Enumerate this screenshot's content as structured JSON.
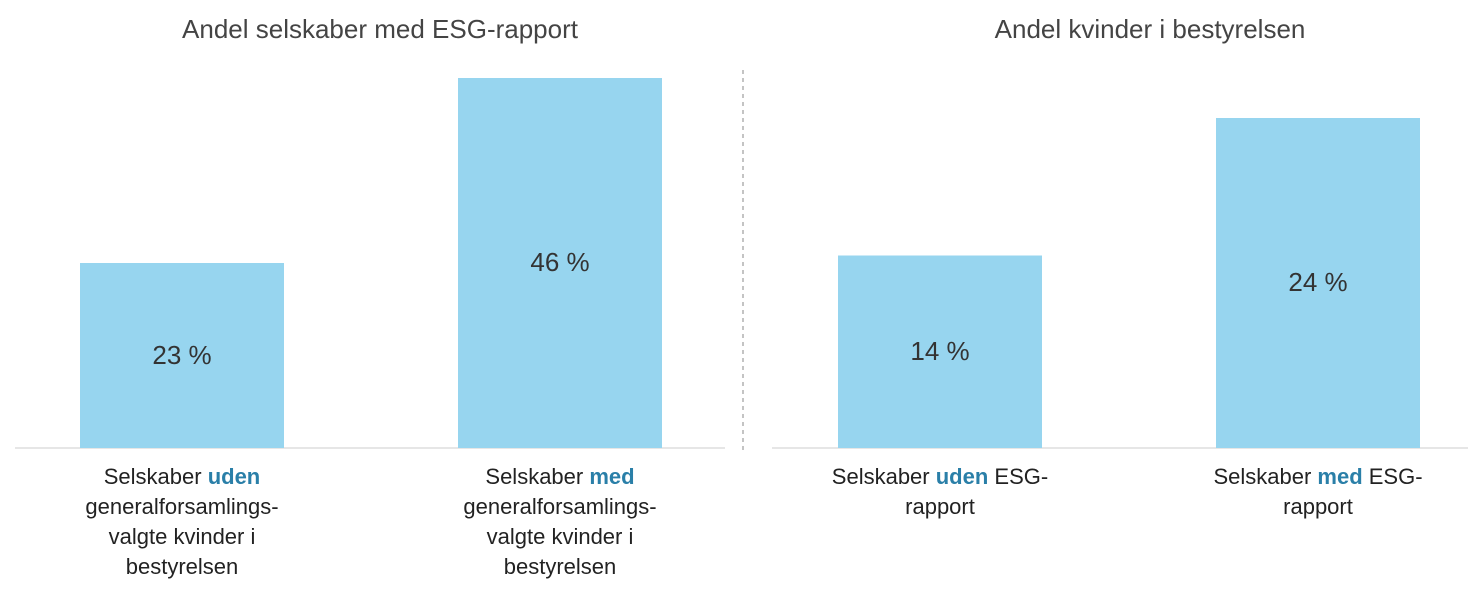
{
  "chart_data": [
    {
      "type": "bar",
      "title": "Andel selskaber med ESG-rapport",
      "categories": [
        "Selskaber uden generalforsamlings-valgte kvinder i bestyrelsen",
        "Selskaber med generalforsamlings-valgte kvinder i bestyrelsen"
      ],
      "category_emphasis": [
        "uden",
        "med"
      ],
      "values": [
        23,
        46
      ],
      "value_labels": [
        "23 %",
        "46 %"
      ],
      "color": "#97d5ef"
    },
    {
      "type": "bar",
      "title": "Andel kvinder i bestyrelsen",
      "categories": [
        "Selskaber uden ESG-rapport",
        "Selskaber med ESG-rapport"
      ],
      "category_emphasis": [
        "uden",
        "med"
      ],
      "values": [
        14,
        24
      ],
      "value_labels": [
        "14 %",
        "24 %"
      ],
      "color": "#97d5ef"
    }
  ]
}
